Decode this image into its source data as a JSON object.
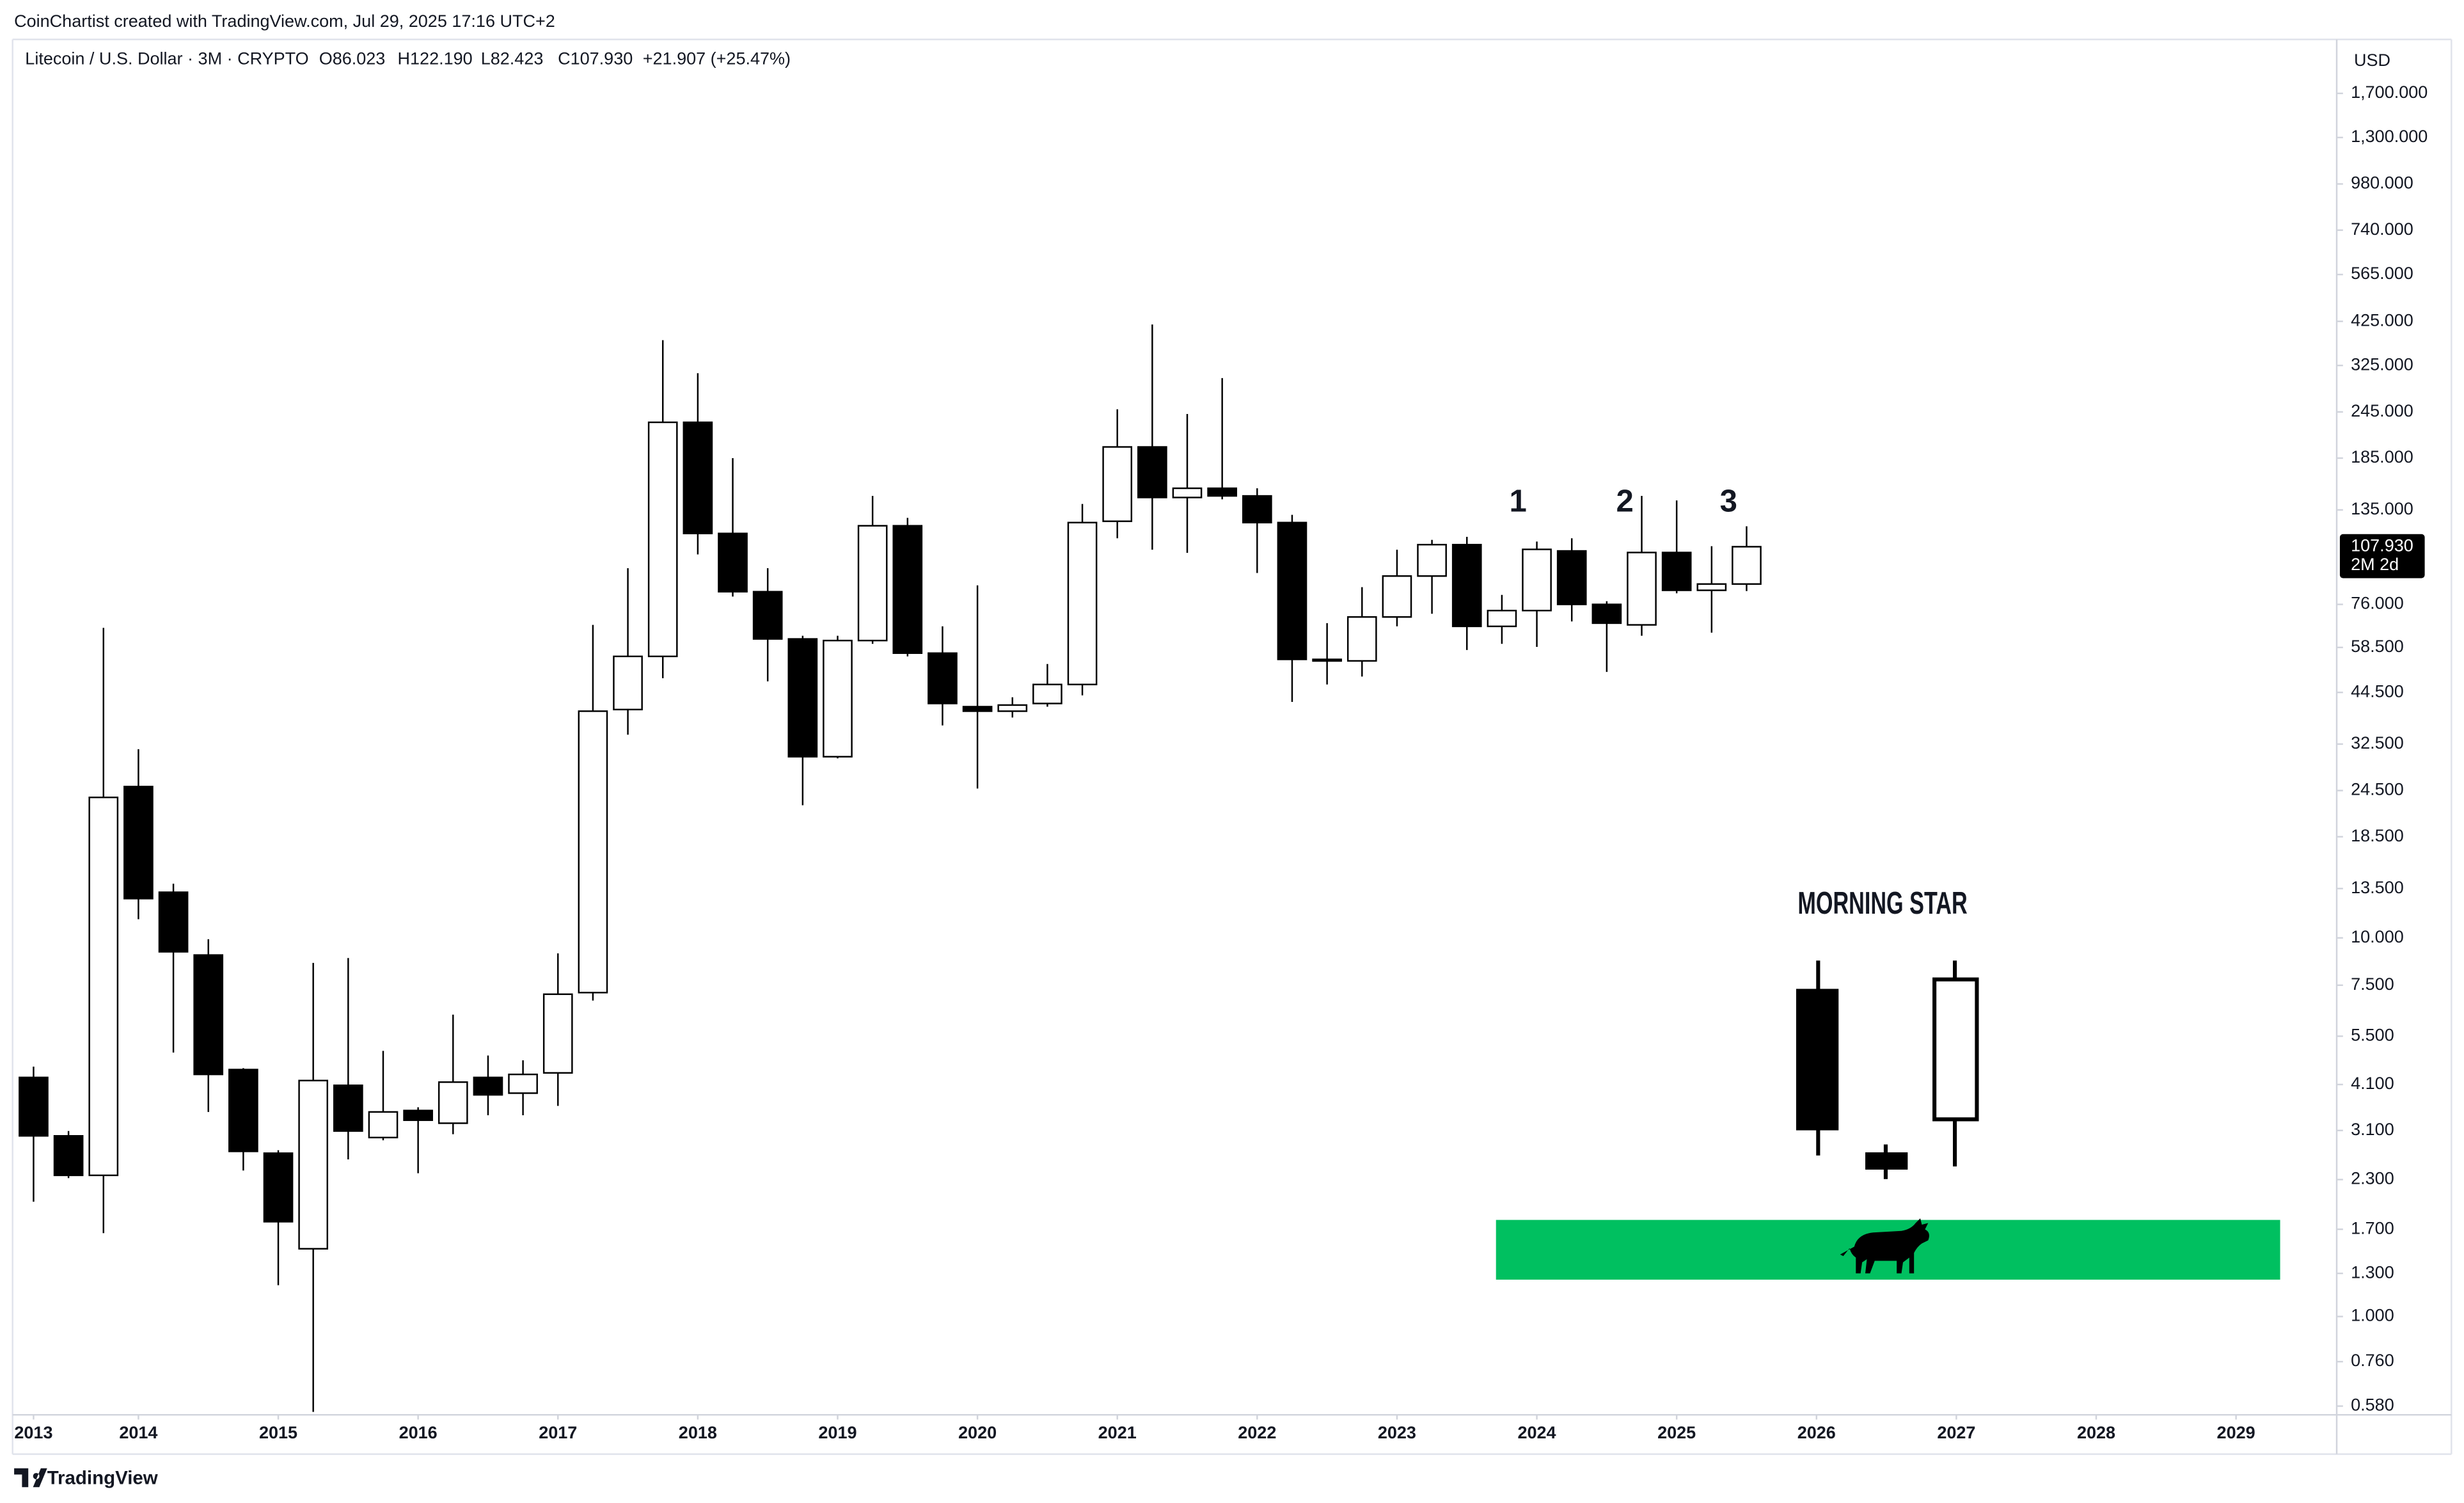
{
  "header": "CoinChartist created with TradingView.com, Jul 29, 2025 17:16 UTC+2",
  "footer": "TradingView",
  "chart_data": {
    "type": "candlestick",
    "title": "Litecoin / U.S. Dollar · 3M · CRYPTO",
    "legend_values": [
      "O86.023",
      "H122.190",
      "L82.423",
      "C107.930",
      "+21.907 (+25.47%)"
    ],
    "x": [
      2013.25,
      2013.5,
      2013.75,
      2014,
      2014.25,
      2014.5,
      2014.75,
      2015,
      2015.25,
      2015.5,
      2015.75,
      2016,
      2016.25,
      2016.5,
      2016.75,
      2017,
      2017.25,
      2017.5,
      2017.75,
      2018,
      2018.25,
      2018.5,
      2018.75,
      2019,
      2019.25,
      2019.5,
      2019.75,
      2020,
      2020.25,
      2020.5,
      2020.75,
      2021,
      2021.25,
      2021.5,
      2021.75,
      2022,
      2022.25,
      2022.5,
      2022.75,
      2023,
      2023.25,
      2023.5,
      2023.75,
      2024,
      2024.25,
      2024.5,
      2024.75,
      2025,
      2025.25,
      2025.5
    ],
    "open": [
      4.28,
      3.0,
      2.36,
      25.1,
      13.2,
      9.01,
      4.49,
      2.7,
      1.51,
      4.08,
      2.97,
      3.5,
      3.24,
      4.28,
      3.89,
      4.4,
      7.17,
      40.1,
      55.4,
      230,
      117,
      82.1,
      61.6,
      30.1,
      61.0,
      122.6,
      56.5,
      40.8,
      39.7,
      41.6,
      46.7,
      126,
      198,
      145.6,
      154,
      147,
      125,
      54.4,
      53.9,
      70.4,
      90.3,
      109.3,
      66.5,
      73.2,
      105.2,
      76.0,
      67.1,
      104.2,
      82.8,
      86.023
    ],
    "high": [
      4.57,
      3.09,
      65.9,
      31.5,
      13.9,
      9.92,
      4.53,
      2.75,
      8.59,
      8.85,
      5.03,
      3.57,
      6.27,
      4.89,
      4.75,
      9.1,
      67.1,
      94.7,
      379,
      310,
      185,
      94.7,
      62.8,
      62.8,
      147,
      128.6,
      66.5,
      85.3,
      43.2,
      52.9,
      140,
      249,
      417,
      242,
      301,
      154,
      131,
      67.8,
      84.4,
      106,
      112.5,
      114.6,
      80.5,
      111.4,
      113.6,
      77.5,
      147,
      143,
      108.3,
      122.19
    ],
    "low": [
      2.01,
      2.32,
      1.66,
      11.2,
      4.98,
      3.47,
      2.43,
      1.21,
      0.56,
      2.6,
      2.92,
      2.39,
      3.03,
      3.4,
      3.4,
      3.6,
      6.83,
      34.4,
      48.5,
      103,
      79.7,
      47.6,
      22.4,
      29.8,
      59.8,
      55.4,
      36.4,
      24.8,
      38.2,
      40.8,
      43.7,
      113.6,
      106,
      104,
      144,
      92,
      42.0,
      46.7,
      49.0,
      66.5,
      71.8,
      57.6,
      59.8,
      58.7,
      68.5,
      50.4,
      62.8,
      81.3,
      64,
      82.423
    ],
    "close": [
      3.0,
      2.36,
      23.5,
      12.7,
      9.19,
      4.36,
      2.73,
      1.78,
      4.2,
      3.09,
      3.47,
      3.3,
      4.16,
      3.85,
      4.36,
      7.1,
      39.7,
      55.4,
      230,
      117,
      82.1,
      61.6,
      30.1,
      61.0,
      122.6,
      56.5,
      41.6,
      39.7,
      41.2,
      46.7,
      125,
      198,
      145.6,
      154,
      147,
      125,
      54.4,
      53.9,
      70.4,
      90.3,
      109.3,
      66.5,
      73.2,
      106.2,
      76.0,
      67.8,
      104.2,
      82.8,
      86.02,
      107.93
    ],
    "up_color": "#ffffff",
    "down_color": "#000000",
    "border_color": "#000000",
    "log_scale": true,
    "grid": false,
    "y_axis_label": "USD",
    "ylim": [
      0.55,
      2360
    ],
    "yticks": [
      {
        "value": 0.58,
        "label": "0.580"
      },
      {
        "value": 0.76,
        "label": "0.760"
      },
      {
        "value": 1,
        "label": "1.000"
      },
      {
        "value": 1.3,
        "label": "1.300"
      },
      {
        "value": 1.7,
        "label": "1.700"
      },
      {
        "value": 2.3,
        "label": "2.300"
      },
      {
        "value": 3.1,
        "label": "3.100"
      },
      {
        "value": 4.1,
        "label": "4.100"
      },
      {
        "value": 5.5,
        "label": "5.500"
      },
      {
        "value": 7.5,
        "label": "7.500"
      },
      {
        "value": 10,
        "label": "10.000"
      },
      {
        "value": 13.5,
        "label": "13.500"
      },
      {
        "value": 18.5,
        "label": "18.500"
      },
      {
        "value": 24.5,
        "label": "24.500"
      },
      {
        "value": 32.5,
        "label": "32.500"
      },
      {
        "value": 44.5,
        "label": "44.500"
      },
      {
        "value": 58.5,
        "label": "58.500"
      },
      {
        "value": 76,
        "label": "76.000"
      },
      {
        "value": 135,
        "label": "135.000"
      },
      {
        "value": 185,
        "label": "185.000"
      },
      {
        "value": 245,
        "label": "245.000"
      },
      {
        "value": 325,
        "label": "325.000"
      },
      {
        "value": 425,
        "label": "425.000"
      },
      {
        "value": 565,
        "label": "565.000"
      },
      {
        "value": 740,
        "label": "740.000"
      },
      {
        "value": 980,
        "label": "980.000"
      },
      {
        "value": 1300,
        "label": "1,300.000"
      },
      {
        "value": 1700,
        "label": "1,700.000"
      }
    ],
    "xlim": [
      2013.1,
      2029.72
    ],
    "xticks": [
      {
        "value": 2013.25,
        "label": "2013"
      },
      2014,
      2015,
      2016,
      2017,
      2018,
      2019,
      2020,
      2021,
      2022,
      2023,
      2024,
      2025,
      2026,
      2027,
      2028,
      2029
    ],
    "last_price": {
      "value": 107.93,
      "label": "107.930"
    },
    "countdown": "2M 2d",
    "annotations": [
      "1",
      "2",
      "3",
      "MORNING STAR"
    ]
  }
}
